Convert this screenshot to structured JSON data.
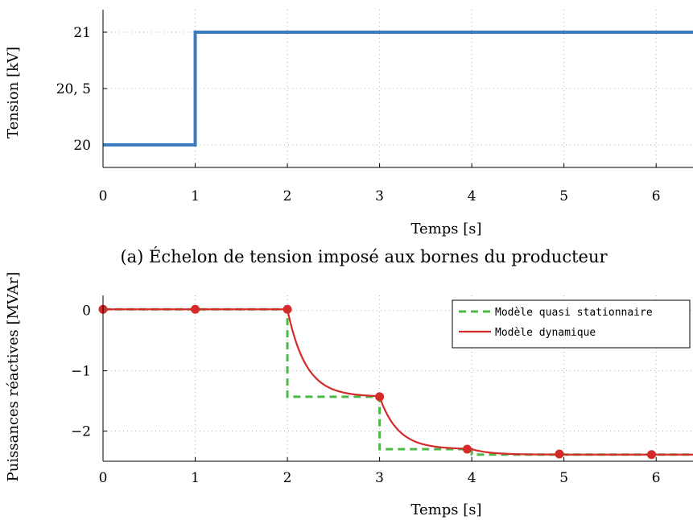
{
  "chart_data": [
    {
      "type": "line",
      "xlabel": "Temps [s]",
      "ylabel": "Tension [kV]",
      "xlim": [
        0,
        6.4
      ],
      "ylim": [
        19.8,
        21.2
      ],
      "x_ticks": [
        0,
        1,
        2,
        3,
        4,
        5,
        6
      ],
      "x_tick_labels": [
        "0",
        "1",
        "2",
        "3",
        "4",
        "5",
        "6"
      ],
      "y_ticks": [
        20,
        20.5,
        21
      ],
      "y_tick_labels": [
        "20",
        "20, 5",
        "21"
      ],
      "caption": "(a) Échelon de tension imposé aux bornes du producteur",
      "series": [
        {
          "color": "#3a7bbf",
          "x": [
            0,
            1,
            1,
            6.4
          ],
          "y": [
            20,
            20,
            21,
            21
          ]
        }
      ]
    },
    {
      "type": "line",
      "xlabel": "Temps [s]",
      "ylabel": "Puissances réactives [MVAr]",
      "xlim": [
        0,
        6.4
      ],
      "ylim": [
        -2.5,
        0.25
      ],
      "x_ticks": [
        0,
        1,
        2,
        3,
        4,
        5,
        6
      ],
      "x_tick_labels": [
        "0",
        "1",
        "2",
        "3",
        "4",
        "5",
        "6"
      ],
      "y_ticks": [
        0,
        -1,
        -2
      ],
      "y_tick_labels": [
        "0",
        "−1",
        "−2"
      ],
      "legend_position": "top-right",
      "series": [
        {
          "name": "Modèle quasi stationnaire",
          "color": "#4cb848",
          "style": "dashed",
          "x": [
            0,
            2,
            2,
            3,
            3,
            4,
            4,
            6.4
          ],
          "y": [
            0.02,
            0.02,
            -1.43,
            -1.43,
            -2.3,
            -2.3,
            -2.39,
            -2.39
          ]
        },
        {
          "name": "Modèle dynamique",
          "color": "#d42a2a",
          "style": "solid",
          "segments": [
            {
              "t0": 0,
              "t1": 2,
              "start": 0.02,
              "end": 0.02,
              "tau": 0.2
            },
            {
              "t0": 2,
              "t1": 3,
              "start": 0.02,
              "end": -1.43,
              "tau": 0.2
            },
            {
              "t0": 3,
              "t1": 4,
              "start": -1.43,
              "end": -2.3,
              "tau": 0.2
            },
            {
              "t0": 4,
              "t1": 6.4,
              "start": -2.3,
              "end": -2.39,
              "tau": 0.2
            }
          ],
          "markers": {
            "x": [
              0,
              1,
              2,
              3,
              3.95,
              4.95,
              5.95
            ],
            "y": [
              0.02,
              0.02,
              0.02,
              -1.43,
              -2.3,
              -2.38,
              -2.39
            ]
          }
        }
      ]
    }
  ]
}
